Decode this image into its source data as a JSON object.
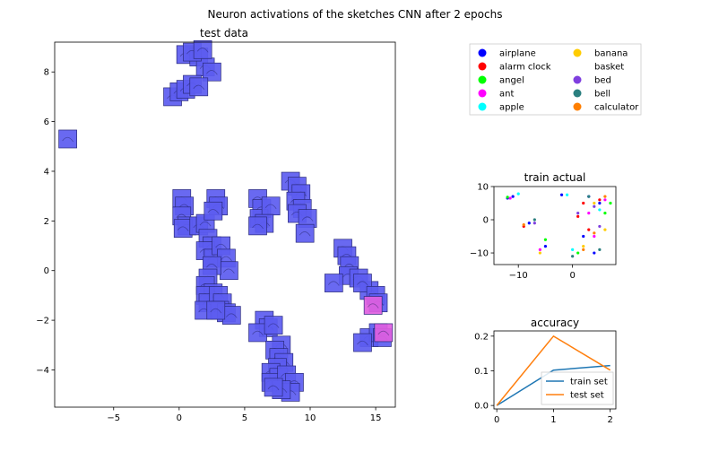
{
  "suptitle": "Neuron activations of the sketches CNN after 2 epochs",
  "legend": {
    "placement": "top-right",
    "entries": [
      {
        "label": "airplane",
        "color": "#0000ff"
      },
      {
        "label": "alarm clock",
        "color": "#ff0000"
      },
      {
        "label": "angel",
        "color": "#00ff00"
      },
      {
        "label": "ant",
        "color": "#ff00ff"
      },
      {
        "label": "apple",
        "color": "#00ffff"
      },
      {
        "label": "banana",
        "color": "#ffcc00"
      },
      {
        "label": "basket",
        "color": "#ffffff"
      },
      {
        "label": "bed",
        "color": "#7f3fdf"
      },
      {
        "label": "bell",
        "color": "#2a7f7f"
      },
      {
        "label": "calculator",
        "color": "#ff7f00"
      }
    ]
  },
  "chart_data": [
    {
      "id": "test",
      "type": "scatter",
      "title": "test data",
      "xlim": [
        -9.5,
        16.5
      ],
      "ylim": [
        -5.5,
        9.2
      ],
      "xticks": [
        -5,
        0,
        5,
        10,
        15
      ],
      "yticks": [
        -4,
        -2,
        0,
        2,
        4,
        6,
        8
      ],
      "marker": "image-thumbnail",
      "clusters": [
        {
          "color": "#5c5cf0",
          "points": [
            [
              0.5,
              8.7
            ],
            [
              1.5,
              8.6
            ],
            [
              2.0,
              8.2
            ],
            [
              1.0,
              8.8
            ],
            [
              2.5,
              8.0
            ],
            [
              1.8,
              8.9
            ]
          ]
        },
        {
          "color": "#5c5cf0",
          "points": [
            [
              -0.5,
              7.0
            ],
            [
              0.0,
              7.2
            ],
            [
              0.5,
              7.3
            ],
            [
              1.0,
              7.5
            ],
            [
              1.5,
              7.4
            ]
          ]
        },
        {
          "color": "#5c5cf0",
          "points": [
            [
              -8.5,
              5.3
            ]
          ]
        },
        {
          "color": "#5c5cf0",
          "points": [
            [
              0.2,
              2.9
            ],
            [
              0.4,
              2.6
            ],
            [
              0.2,
              2.2
            ],
            [
              0.6,
              1.8
            ],
            [
              0.3,
              1.7
            ],
            [
              1.5,
              1.8
            ],
            [
              2.0,
              1.9
            ],
            [
              2.8,
              2.9
            ],
            [
              3.0,
              2.6
            ],
            [
              2.6,
              2.4
            ],
            [
              2.2,
              1.3
            ],
            [
              2.5,
              1.0
            ]
          ]
        },
        {
          "color": "#5c5cf0",
          "points": [
            [
              2.0,
              0.8
            ],
            [
              2.6,
              0.5
            ],
            [
              3.2,
              1.0
            ],
            [
              3.6,
              0.5
            ],
            [
              3.8,
              0.0
            ],
            [
              2.5,
              0.2
            ],
            [
              2.2,
              -0.3
            ],
            [
              2.0,
              -0.6
            ],
            [
              2.6,
              -0.9
            ]
          ]
        },
        {
          "color": "#5c5cf0",
          "points": [
            [
              2.0,
              -1.0
            ],
            [
              2.2,
              -1.3
            ],
            [
              1.9,
              -1.6
            ],
            [
              3.0,
              -1.0
            ],
            [
              3.3,
              -1.3
            ],
            [
              3.1,
              -1.6
            ],
            [
              3.6,
              -1.7
            ],
            [
              4.0,
              -1.8
            ],
            [
              2.8,
              -1.6
            ]
          ]
        },
        {
          "color": "#5c5cf0",
          "points": [
            [
              6.0,
              2.9
            ],
            [
              6.3,
              2.5
            ],
            [
              6.1,
              2.1
            ],
            [
              7.0,
              2.6
            ],
            [
              6.5,
              1.9
            ],
            [
              6.0,
              1.8
            ]
          ]
        },
        {
          "color": "#5c5cf0",
          "points": [
            [
              8.5,
              3.6
            ],
            [
              9.0,
              3.4
            ],
            [
              9.3,
              3.1
            ],
            [
              8.9,
              2.8
            ],
            [
              9.4,
              2.5
            ],
            [
              9.0,
              2.3
            ],
            [
              9.8,
              2.1
            ],
            [
              9.6,
              1.5
            ]
          ]
        },
        {
          "color": "#5c5cf0",
          "points": [
            [
              12.5,
              0.9
            ],
            [
              12.8,
              0.6
            ],
            [
              13.0,
              0.2
            ],
            [
              12.9,
              -0.2
            ],
            [
              11.8,
              -0.5
            ],
            [
              13.7,
              -0.3
            ],
            [
              14.5,
              -0.8
            ],
            [
              14.0,
              -0.5
            ],
            [
              15.0,
              -1.0
            ],
            [
              15.2,
              -1.3
            ]
          ]
        },
        {
          "color": "#e060e0",
          "points": [
            [
              14.8,
              -1.4
            ]
          ]
        },
        {
          "color": "#5c5cf0",
          "points": [
            [
              14.5,
              -2.7
            ],
            [
              15.2,
              -2.5
            ],
            [
              14.0,
              -2.9
            ],
            [
              15.5,
              -2.7
            ]
          ]
        },
        {
          "color": "#e060e0",
          "points": [
            [
              15.6,
              -2.5
            ]
          ]
        },
        {
          "color": "#5c5cf0",
          "points": [
            [
              6.5,
              -2.0
            ],
            [
              6.8,
              -2.3
            ],
            [
              6.0,
              -2.5
            ],
            [
              7.2,
              -2.2
            ],
            [
              7.8,
              -3.0
            ],
            [
              7.3,
              -3.2
            ],
            [
              7.6,
              -3.5
            ],
            [
              8.0,
              -3.7
            ]
          ]
        },
        {
          "color": "#5c5cf0",
          "points": [
            [
              7.5,
              -3.9
            ],
            [
              7.0,
              -4.1
            ],
            [
              7.6,
              -4.3
            ],
            [
              7.0,
              -4.5
            ],
            [
              8.2,
              -4.2
            ],
            [
              8.8,
              -4.5
            ],
            [
              8.5,
              -4.9
            ],
            [
              7.8,
              -4.8
            ],
            [
              7.2,
              -4.7
            ]
          ]
        }
      ]
    },
    {
      "id": "train",
      "type": "scatter",
      "title": "train actual",
      "xlim": [
        -14.5,
        8
      ],
      "ylim": [
        -13.5,
        10
      ],
      "xticks": [
        -10,
        0
      ],
      "yticks": [
        -10,
        0,
        10
      ],
      "series": [
        {
          "color": "#0000ff",
          "points": [
            [
              -11,
              7
            ],
            [
              -12,
              6.5
            ],
            [
              -2,
              7.5
            ],
            [
              3,
              7
            ],
            [
              5,
              5
            ],
            [
              -8,
              -1
            ],
            [
              -5,
              -8
            ],
            [
              2,
              -5
            ],
            [
              4,
              -10
            ]
          ]
        },
        {
          "color": "#ff0000",
          "points": [
            [
              -9,
              -2
            ],
            [
              1,
              1
            ],
            [
              3,
              -3
            ],
            [
              5,
              6
            ],
            [
              2,
              5
            ]
          ]
        },
        {
          "color": "#00ff00",
          "points": [
            [
              -12,
              6.8
            ],
            [
              -5,
              -6
            ],
            [
              1,
              -10
            ],
            [
              7,
              5
            ],
            [
              6,
              2
            ]
          ]
        },
        {
          "color": "#ff00ff",
          "points": [
            [
              -11.5,
              6.5
            ],
            [
              -6,
              -9
            ],
            [
              3,
              2
            ],
            [
              4,
              -5
            ],
            [
              6,
              6
            ]
          ]
        },
        {
          "color": "#00ffff",
          "points": [
            [
              -1,
              7.5
            ],
            [
              -10,
              7.8
            ],
            [
              0,
              -9
            ],
            [
              5,
              3
            ]
          ]
        },
        {
          "color": "#ffcc00",
          "points": [
            [
              2,
              -8
            ],
            [
              4,
              5
            ],
            [
              6,
              -3
            ],
            [
              -6,
              -10
            ]
          ]
        },
        {
          "color": "#7f3fdf",
          "points": [
            [
              -7,
              -1
            ],
            [
              4,
              4
            ],
            [
              1,
              2
            ],
            [
              5,
              -2
            ]
          ]
        },
        {
          "color": "#2a7f7f",
          "points": [
            [
              -7,
              0
            ],
            [
              0,
              -11
            ],
            [
              3,
              7
            ],
            [
              5,
              -9
            ]
          ]
        },
        {
          "color": "#ff7f00",
          "points": [
            [
              -9,
              -1.5
            ],
            [
              4,
              -4
            ],
            [
              6,
              7
            ],
            [
              2,
              -9
            ]
          ]
        }
      ]
    },
    {
      "id": "accuracy",
      "type": "line",
      "title": "accuracy",
      "x": [
        0,
        1,
        2
      ],
      "xlim": [
        -0.05,
        2.1
      ],
      "ylim": [
        -0.01,
        0.215
      ],
      "xticks": [
        0,
        1,
        2
      ],
      "yticks": [
        0.0,
        0.1,
        0.2
      ],
      "yticklabels": [
        "0.0",
        "0.1",
        "0.2"
      ],
      "series": [
        {
          "name": "train set",
          "color": "#1f77b4",
          "values": [
            0.0,
            0.102,
            0.115
          ]
        },
        {
          "name": "test set",
          "color": "#ff7f0e",
          "values": [
            0.0,
            0.2,
            0.102
          ]
        }
      ],
      "legend_placement": "lower-right"
    }
  ]
}
